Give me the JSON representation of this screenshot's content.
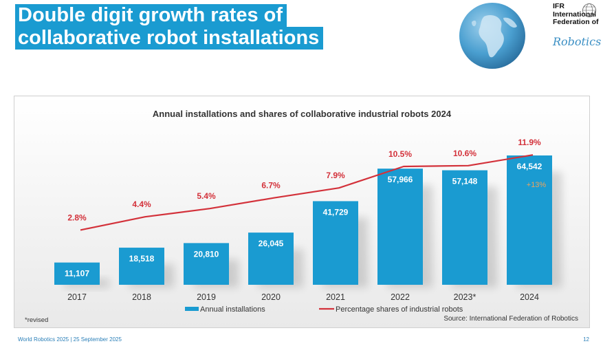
{
  "slide": {
    "title_line1": "Double digit growth rates of",
    "title_line2": "collaborative robot installations",
    "footer_left": "World Robotics 2025  | 25 September 2025",
    "page_number": "12"
  },
  "logo": {
    "line1": "IFR",
    "line2": "International",
    "line3": "Federation of",
    "script": "Robotics"
  },
  "chart_data": {
    "type": "bar",
    "title": "Annual installations and shares of collaborative industrial robots 2024",
    "categories": [
      "2017",
      "2018",
      "2019",
      "2020",
      "2021",
      "2022",
      "2023*",
      "2024"
    ],
    "series": [
      {
        "name": "Annual installations",
        "kind": "bar",
        "color": "#1a9bd1",
        "values": [
          11107,
          18518,
          20810,
          26045,
          41729,
          57966,
          57148,
          64542
        ],
        "labels": [
          "11,107",
          "18,518",
          "20,810",
          "26,045",
          "41,729",
          "57,966",
          "57,148",
          "64,542"
        ]
      },
      {
        "name": "Percentage shares of industrial robots",
        "kind": "line",
        "color": "#d3313a",
        "values": [
          2.8,
          4.4,
          5.4,
          6.7,
          7.9,
          10.5,
          10.6,
          11.9
        ],
        "labels": [
          "2.8%",
          "4.4%",
          "5.4%",
          "6.7%",
          "7.9%",
          "10.5%",
          "10.6%",
          "11.9%"
        ]
      }
    ],
    "annotation": "+13%",
    "footnote": "*revised",
    "source": "Source: International Federation of Robotics",
    "legend_position": "bottom",
    "grid": false
  }
}
